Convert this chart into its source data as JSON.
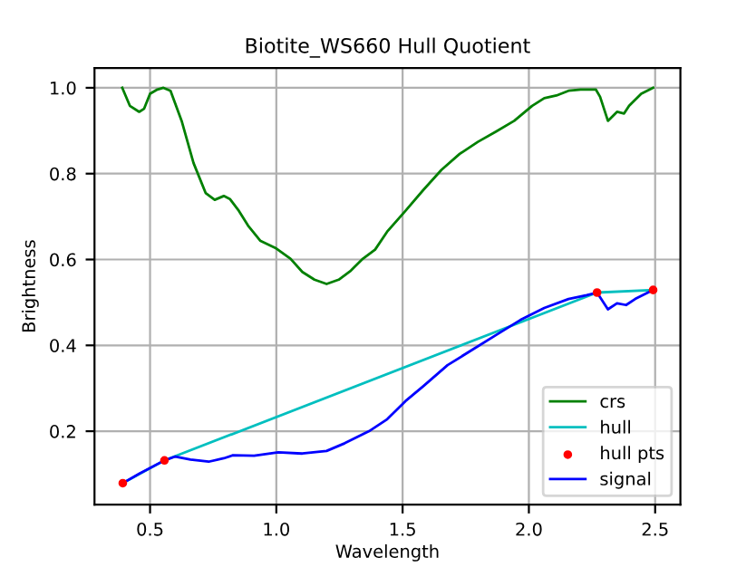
{
  "chart_data": {
    "type": "line",
    "title": "Biotite_WS660 Hull Quotient",
    "xlabel": "Wavelength",
    "ylabel": "Brightness",
    "xlim": [
      0.28,
      2.6
    ],
    "ylim": [
      0.029,
      1.046
    ],
    "xticks": [
      0.5,
      {
        "value": 1,
        "label": "1.0"
      },
      1.5,
      {
        "value": 2,
        "label": "2.0"
      },
      2.5
    ],
    "yticks": [
      0.2,
      0.4,
      0.6,
      0.8,
      {
        "value": 1,
        "label": "1.0"
      }
    ],
    "grid": true,
    "legend": "bottom right",
    "series": [
      {
        "name": "crs",
        "color": "#008000",
        "x": [
          0.39,
          0.42,
          0.457,
          0.476,
          0.5,
          0.529,
          0.553,
          0.581,
          0.625,
          0.672,
          0.72,
          0.756,
          0.792,
          0.816,
          0.852,
          0.888,
          0.936,
          0.996,
          1.056,
          1.103,
          1.151,
          1.199,
          1.247,
          1.295,
          1.343,
          1.391,
          1.439,
          1.511,
          1.582,
          1.654,
          1.726,
          1.798,
          1.87,
          1.942,
          2.013,
          2.061,
          2.109,
          2.157,
          2.205,
          2.265,
          2.282,
          2.313,
          2.349,
          2.377,
          2.397,
          2.445,
          2.492
        ],
        "values": [
          1.0,
          0.958,
          0.944,
          0.951,
          0.986,
          0.996,
          1.0,
          0.993,
          0.923,
          0.825,
          0.755,
          0.739,
          0.748,
          0.741,
          0.713,
          0.679,
          0.644,
          0.627,
          0.602,
          0.571,
          0.553,
          0.543,
          0.553,
          0.574,
          0.602,
          0.623,
          0.665,
          0.713,
          0.762,
          0.809,
          0.846,
          0.874,
          0.898,
          0.923,
          0.958,
          0.976,
          0.982,
          0.993,
          0.996,
          0.996,
          0.979,
          0.923,
          0.944,
          0.94,
          0.958,
          0.986,
          1.0
        ]
      },
      {
        "name": "hull",
        "color": "#00bfbf",
        "x": [
          0.392,
          0.557,
          2.27,
          2.492
        ],
        "values": [
          0.079,
          0.132,
          0.523,
          0.529
        ]
      },
      {
        "name": "hull pts",
        "type": "scatter",
        "color": "#ff0000",
        "marker": "circle",
        "x": [
          0.392,
          0.557,
          2.27,
          2.492
        ],
        "values": [
          0.079,
          0.132,
          0.523,
          0.529
        ]
      },
      {
        "name": "signal",
        "color": "#0000ff",
        "x": [
          0.392,
          0.457,
          0.557,
          0.6,
          0.66,
          0.732,
          0.792,
          0.828,
          0.912,
          1.008,
          1.103,
          1.199,
          1.271,
          1.367,
          1.439,
          1.511,
          1.582,
          1.678,
          1.774,
          1.87,
          1.966,
          2.061,
          2.157,
          2.229,
          2.27,
          2.313,
          2.349,
          2.385,
          2.421,
          2.492
        ],
        "values": [
          0.079,
          0.101,
          0.132,
          0.141,
          0.134,
          0.129,
          0.137,
          0.144,
          0.143,
          0.151,
          0.148,
          0.154,
          0.172,
          0.2,
          0.228,
          0.27,
          0.305,
          0.354,
          0.389,
          0.424,
          0.459,
          0.487,
          0.508,
          0.517,
          0.523,
          0.484,
          0.498,
          0.494,
          0.508,
          0.529
        ]
      }
    ]
  }
}
